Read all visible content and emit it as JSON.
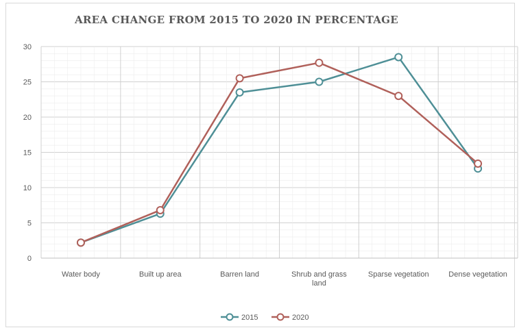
{
  "chart_data": {
    "type": "line",
    "title": "AREA CHANGE FROM 2015 TO 2020 IN PERCENTAGE",
    "categories": [
      [
        "Water body"
      ],
      [
        "Built up area"
      ],
      [
        "Barren land"
      ],
      [
        "Shrub and grass",
        "land"
      ],
      [
        "Sparse vegetation"
      ],
      [
        "Dense vegetation"
      ]
    ],
    "ylim": [
      0,
      30
    ],
    "yticks": [
      "0",
      "5",
      "10",
      "15",
      "20",
      "25",
      "30"
    ],
    "grid": true,
    "legend_position": "bottom",
    "series": [
      {
        "name": "2015",
        "color": "#4e8f96",
        "values": [
          2.2,
          6.3,
          23.5,
          25.0,
          28.5,
          12.7
        ]
      },
      {
        "name": "2020",
        "color": "#b0605a",
        "values": [
          2.2,
          6.8,
          25.5,
          27.7,
          23.0,
          13.4
        ]
      }
    ]
  }
}
